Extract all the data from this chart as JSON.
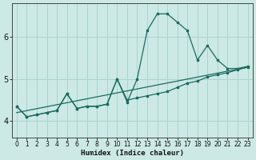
{
  "xlabel": "Humidex (Indice chaleur)",
  "background_color": "#cce9e5",
  "grid_color": "#aad4cf",
  "line_color": "#1a6b5e",
  "xlim": [
    -0.5,
    23.5
  ],
  "ylim": [
    3.6,
    6.8
  ],
  "yticks": [
    4,
    5,
    6
  ],
  "xticks": [
    0,
    1,
    2,
    3,
    4,
    5,
    6,
    7,
    8,
    9,
    10,
    11,
    12,
    13,
    14,
    15,
    16,
    17,
    18,
    19,
    20,
    21,
    22,
    23
  ],
  "series1_x": [
    0,
    1,
    2,
    3,
    4,
    5,
    6,
    7,
    8,
    9,
    10,
    11,
    12,
    13,
    14,
    15,
    16,
    17,
    18,
    19,
    20,
    21,
    22,
    23
  ],
  "series1_y": [
    4.35,
    4.1,
    4.15,
    4.2,
    4.25,
    4.65,
    4.3,
    4.35,
    4.35,
    4.4,
    5.0,
    4.45,
    5.0,
    6.15,
    6.55,
    6.55,
    6.35,
    6.15,
    5.45,
    5.8,
    5.45,
    5.25,
    5.25,
    5.3
  ],
  "series2_x": [
    0,
    1,
    2,
    3,
    4,
    5,
    6,
    7,
    8,
    9,
    10,
    11,
    12,
    13,
    14,
    15,
    16,
    17,
    18,
    19,
    20,
    21,
    22,
    23
  ],
  "series2_y": [
    4.35,
    4.1,
    4.15,
    4.2,
    4.25,
    4.65,
    4.3,
    4.35,
    4.35,
    4.4,
    5.0,
    4.5,
    4.55,
    4.6,
    4.65,
    4.7,
    4.8,
    4.9,
    4.95,
    5.05,
    5.1,
    5.15,
    5.22,
    5.28
  ],
  "series3_x": [
    0,
    23
  ],
  "series3_y": [
    4.2,
    5.28
  ]
}
